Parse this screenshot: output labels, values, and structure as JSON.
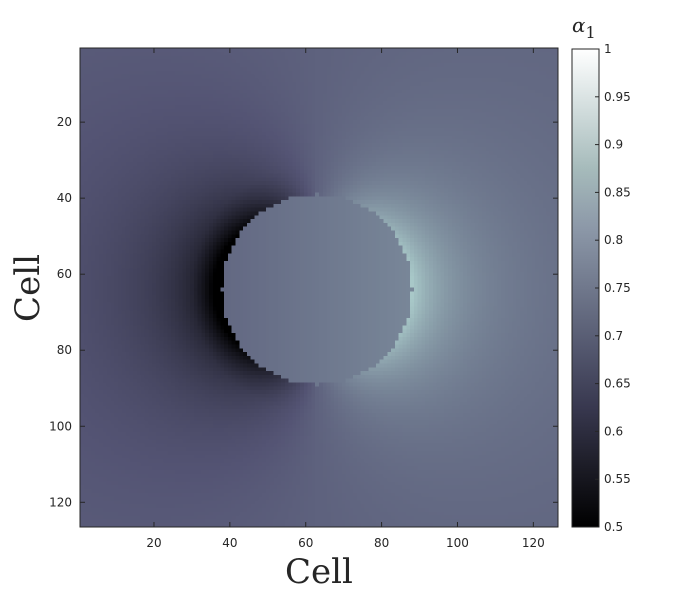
{
  "chart_data": {
    "type": "heatmap",
    "title": "",
    "xlabel": "Cell",
    "ylabel": "Cell",
    "grid_size": [
      126,
      126
    ],
    "xlim": [
      0.5,
      126.5
    ],
    "ylim": [
      0.5,
      126.5
    ],
    "y_reversed": true,
    "x_ticks": [
      20,
      40,
      60,
      80,
      100,
      120
    ],
    "x_tick_labels": [
      "20",
      "40",
      "60",
      "80",
      "100",
      "120"
    ],
    "y_ticks": [
      20,
      40,
      60,
      80,
      100,
      120
    ],
    "y_tick_labels": [
      "20",
      "40",
      "60",
      "80",
      "100",
      "120"
    ],
    "colormap": "bone",
    "colorbar": {
      "label": "α1",
      "range": [
        0.5,
        1
      ],
      "ticks": [
        0.5,
        0.55,
        0.6,
        0.65,
        0.7,
        0.75,
        0.8,
        0.85,
        0.9,
        0.95,
        1
      ],
      "tick_labels": [
        "0.5",
        "0.55",
        "0.6",
        "0.65",
        "0.7",
        "0.75",
        "0.8",
        "0.85",
        "0.9",
        "0.95",
        "1"
      ]
    },
    "field": {
      "background_value": 0.71,
      "inclusion_center": [
        63,
        64
      ],
      "inclusion_radius": 25,
      "inclusion_value_range": [
        0.72,
        0.77
      ],
      "min_value": 0.5,
      "min_location": [
        35,
        64
      ],
      "max_value": 0.87,
      "max_location": [
        88,
        64
      ]
    }
  }
}
